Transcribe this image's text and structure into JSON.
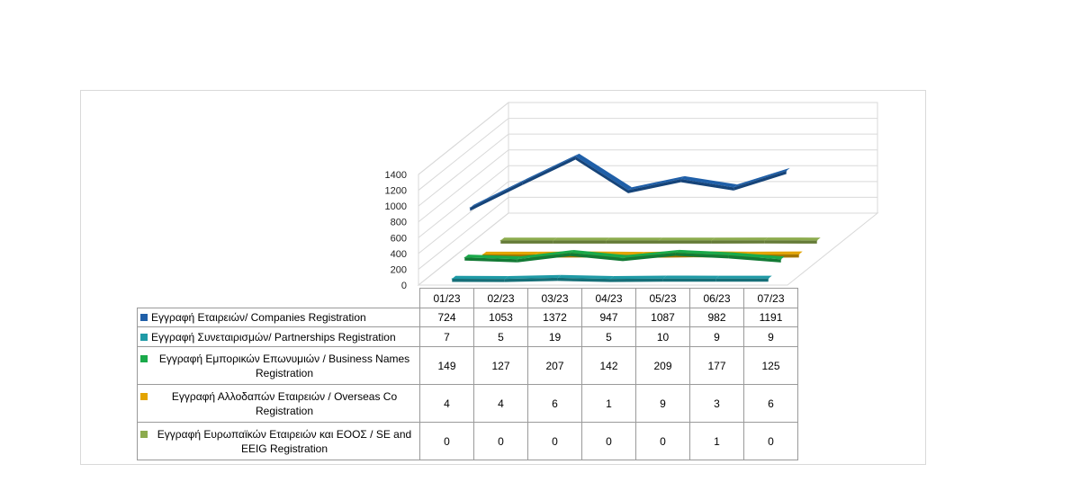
{
  "chart_data": {
    "type": "line",
    "categories": [
      "01/23",
      "02/23",
      "03/23",
      "04/23",
      "05/23",
      "06/23",
      "07/23"
    ],
    "ylim": [
      0,
      1400
    ],
    "yticks": [
      0,
      200,
      400,
      600,
      800,
      1000,
      1200,
      1400
    ],
    "grid": true,
    "view": "3d",
    "legend": "table",
    "series": [
      {
        "name": "Εγγραφή  Εταιρειών/ Companies Registration",
        "color": "#1f5fa8",
        "values": [
          724,
          1053,
          1372,
          947,
          1087,
          982,
          1191
        ]
      },
      {
        "name": "Εγγραφή  Συνεταιρισμών/ Partnerships Registration",
        "color": "#1f9aa6",
        "values": [
          7,
          5,
          19,
          5,
          10,
          9,
          9
        ]
      },
      {
        "name": "Εγγραφή  Εμπορικών  Επωνυμιών  / Business Names Registration",
        "color": "#1aaa4a",
        "values": [
          149,
          127,
          207,
          142,
          209,
          177,
          125
        ]
      },
      {
        "name": "Εγγραφή  Αλλοδαπών  Εταιρειών  / Overseas Co Registration",
        "color": "#e3a400",
        "values": [
          4,
          4,
          6,
          1,
          9,
          3,
          6
        ]
      },
      {
        "name": "Εγγραφή  Ευρωπαϊκών Εταιρειών και ΕΟΟΣ / SE and EEIG Registration",
        "color": "#8cab4e",
        "values": [
          0,
          0,
          0,
          0,
          0,
          1,
          0
        ]
      }
    ]
  }
}
